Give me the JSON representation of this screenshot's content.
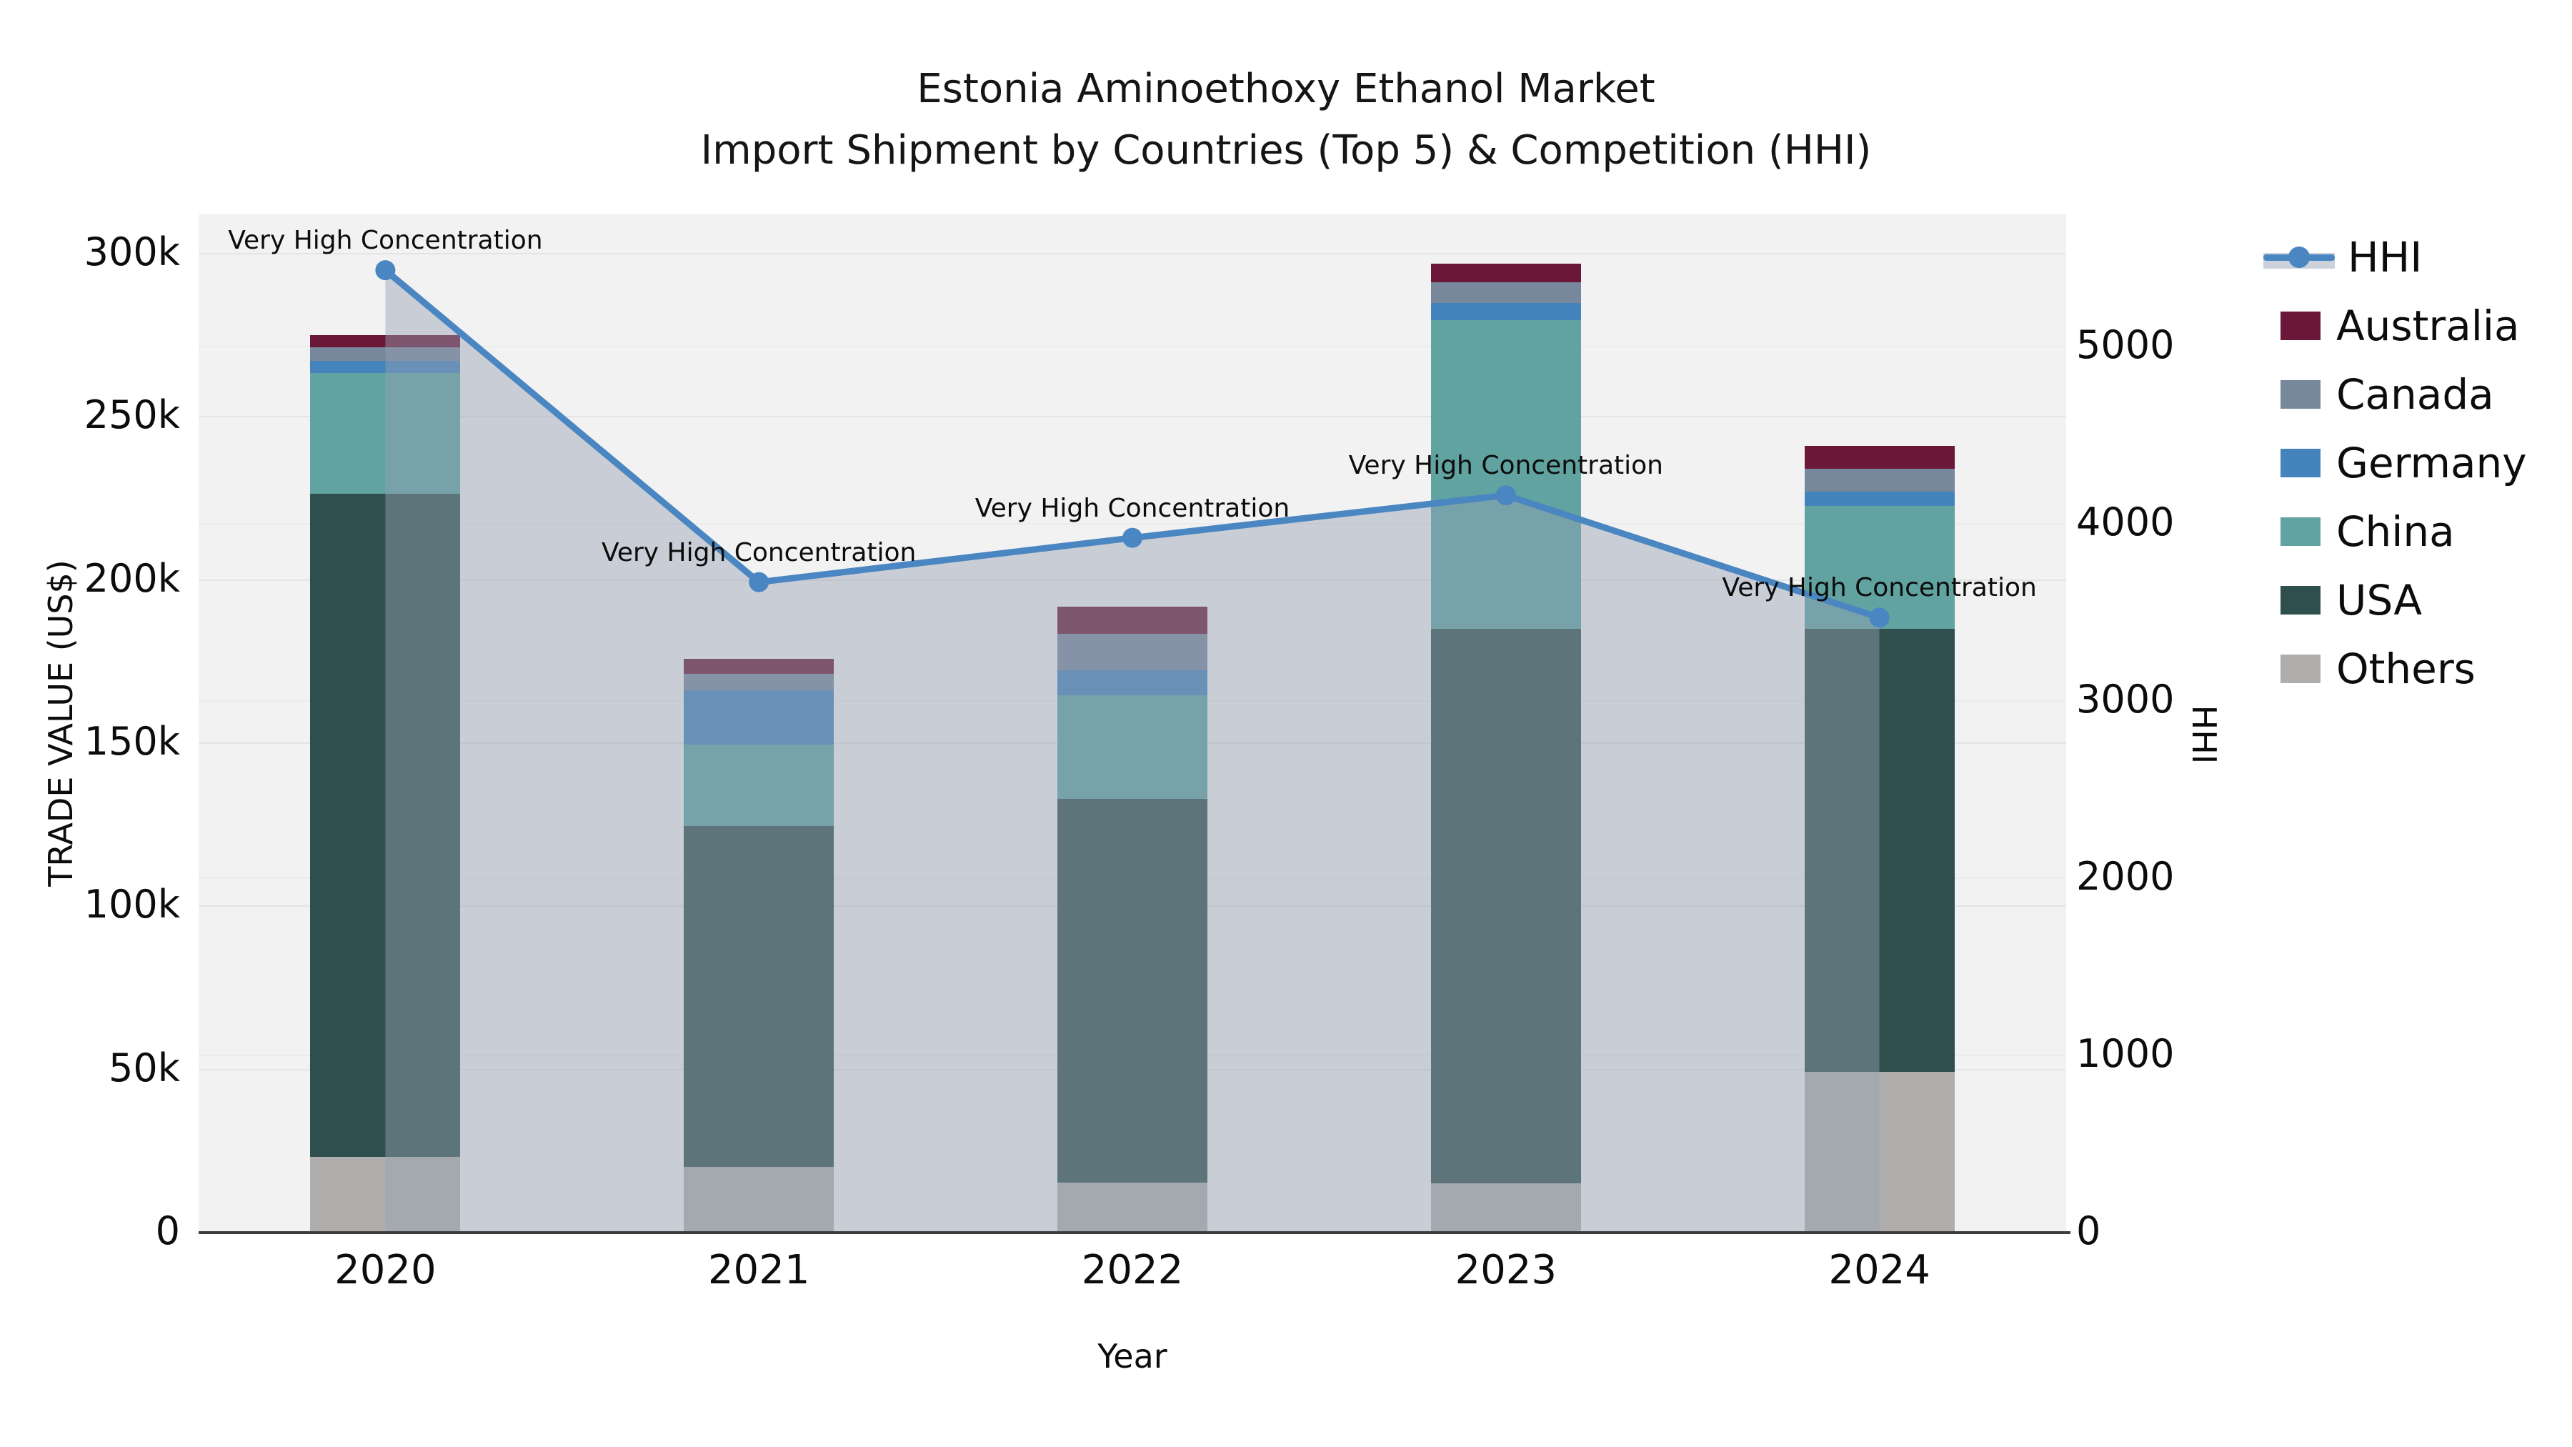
{
  "title": {
    "line1": "Estonia Aminoethoxy Ethanol Market",
    "line2": "Import Shipment by Countries (Top 5) & Competition (HHI)"
  },
  "axes": {
    "left": {
      "title": "TRADE VALUE (US$)",
      "tick_labels": [
        "0",
        "50k",
        "100k",
        "150k",
        "200k",
        "250k",
        "300k"
      ],
      "tick_values": [
        0,
        50000,
        100000,
        150000,
        200000,
        250000,
        300000
      ]
    },
    "right": {
      "title": "HHI",
      "tick_labels": [
        "0",
        "1000",
        "2000",
        "3000",
        "4000",
        "5000"
      ],
      "tick_values": [
        0,
        1000,
        2000,
        3000,
        4000,
        5000
      ]
    },
    "bottom": {
      "title": "Year"
    }
  },
  "legend": {
    "items": [
      {
        "label": "HHI",
        "type": "line",
        "color": "#4a86c1"
      },
      {
        "label": "Australia",
        "type": "patch",
        "color": "#6b1737"
      },
      {
        "label": "Canada",
        "type": "patch",
        "color": "#78889c"
      },
      {
        "label": "Germany",
        "type": "patch",
        "color": "#4483bb"
      },
      {
        "label": "China",
        "type": "patch",
        "color": "#60a3a0"
      },
      {
        "label": "USA",
        "type": "patch",
        "color": "#2e4f4e"
      },
      {
        "label": "Others",
        "type": "patch",
        "color": "#b0aeac"
      }
    ]
  },
  "chart_data": {
    "type": "combo_stacked_bar_line",
    "categories": [
      "2020",
      "2021",
      "2022",
      "2023",
      "2024"
    ],
    "bar_value_unit": "US$ trade value",
    "series": [
      {
        "name": "Others",
        "color": "#b0aeac",
        "values": [
          23200,
          20200,
          15400,
          15100,
          49300
        ]
      },
      {
        "name": "USA",
        "color": "#2e4f4e",
        "values": [
          203300,
          104300,
          117500,
          169900,
          135700
        ]
      },
      {
        "name": "China",
        "color": "#60a3a0",
        "values": [
          36900,
          25000,
          31800,
          94600,
          37600
        ]
      },
      {
        "name": "Germany",
        "color": "#4483bb",
        "values": [
          3700,
          16600,
          7600,
          5300,
          4400
        ]
      },
      {
        "name": "Canada",
        "color": "#78889c",
        "values": [
          4200,
          5100,
          11200,
          6400,
          7100
        ]
      },
      {
        "name": "Australia",
        "color": "#6b1737",
        "values": [
          3600,
          4600,
          8400,
          5700,
          6900
        ]
      }
    ],
    "bar_totals": [
      274900,
      175800,
      191900,
      297000,
      241000
    ],
    "line": {
      "name": "HHI",
      "color": "#4a86c1",
      "values": [
        5430,
        3670,
        3920,
        4160,
        3470
      ],
      "area_fill": "rgba(151,161,180,0.45)",
      "marker": "circle"
    },
    "annotations": [
      {
        "text": "Very High Concentration",
        "category": "2020"
      },
      {
        "text": "Very High Concentration",
        "category": "2021"
      },
      {
        "text": "Very High Concentration",
        "category": "2022"
      },
      {
        "text": "Very High Concentration",
        "category": "2023"
      },
      {
        "text": "Very High Concentration",
        "category": "2024"
      }
    ],
    "title": "Estonia Aminoethoxy Ethanol Market — Import Shipment by Countries (Top 5) & Competition (HHI)",
    "xlabel": "Year",
    "ylabel_left": "TRADE VALUE (US$)",
    "ylabel_right": "HHI",
    "ylim_left": [
      0,
      312000
    ],
    "ylim_right": [
      0,
      5745
    ],
    "grid": true,
    "legend_position": "right",
    "plot_bg": "#f2f2f2"
  }
}
